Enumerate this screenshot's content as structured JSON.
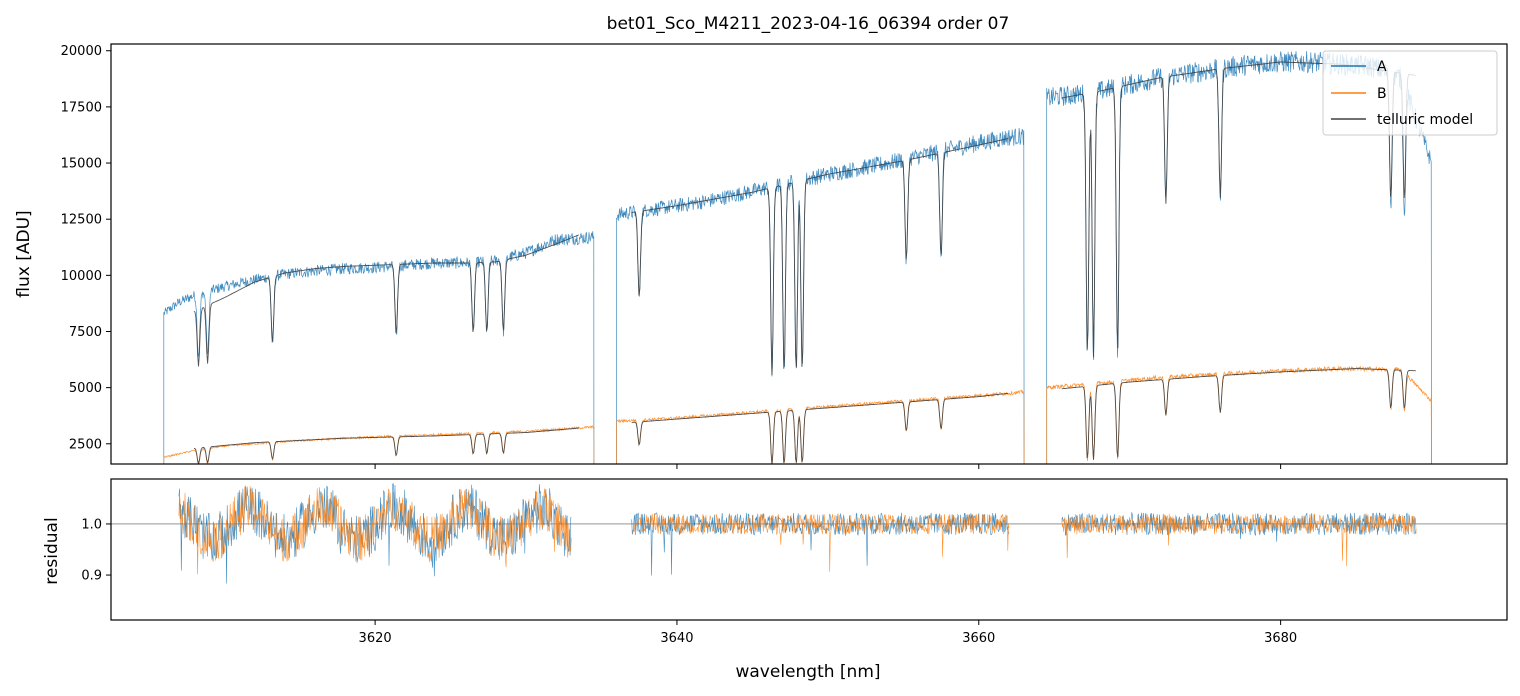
{
  "chart_data": {
    "type": "line",
    "title": "bet01_Sco_M4211_2023-04-16_06394  order 07",
    "xlabel": "wavelength [nm]",
    "xlim": [
      3602.5,
      3695
    ],
    "x_ticks": [
      "3620",
      "3640",
      "3660",
      "3680"
    ],
    "panels": [
      {
        "name": "flux",
        "ylabel": "flux [ADU]",
        "ylim": [
          1600,
          20300
        ],
        "y_ticks": [
          "2500",
          "5000",
          "7500",
          "10000",
          "12500",
          "15000",
          "17500",
          "20000"
        ],
        "legend_position": "upper right",
        "legend": [
          "A",
          "B",
          "telluric model"
        ],
        "series": [
          {
            "name": "A",
            "color": "#1f77b4",
            "segments": [
              {
                "x": [
                  3606,
                  3607,
                  3608,
                  3609,
                  3610,
                  3612,
                  3614,
                  3616,
                  3618,
                  3620,
                  3622,
                  3624,
                  3626,
                  3628,
                  3630,
                  3632,
                  3634.5
                ],
                "y": [
                  8300,
                  8800,
                  9100,
                  9300,
                  9500,
                  9800,
                  10050,
                  10200,
                  10300,
                  10350,
                  10450,
                  10550,
                  10550,
                  10650,
                  11000,
                  11600,
                  11700
                ]
              },
              {
                "x": [
                  3636,
                  3638,
                  3640,
                  3642,
                  3644,
                  3646,
                  3648,
                  3650,
                  3652,
                  3654,
                  3656,
                  3658,
                  3660,
                  3662,
                  3663
                ],
                "y": [
                  12700,
                  12900,
                  13100,
                  13300,
                  13600,
                  13900,
                  14200,
                  14500,
                  14750,
                  15000,
                  15300,
                  15600,
                  15900,
                  16150,
                  16200
                ]
              },
              {
                "x": [
                  3664.5,
                  3666,
                  3668,
                  3670,
                  3672,
                  3674,
                  3676,
                  3678,
                  3680,
                  3682,
                  3684,
                  3686,
                  3688,
                  3690
                ],
                "y": [
                  17900,
                  18000,
                  18200,
                  18500,
                  18800,
                  19000,
                  19200,
                  19400,
                  19500,
                  19500,
                  19400,
                  19300,
                  18800,
                  15000
                ]
              }
            ]
          },
          {
            "name": "B",
            "color": "#ff7f0e",
            "segments": [
              {
                "x": [
                  3606,
                  3608,
                  3610,
                  3614,
                  3618,
                  3622,
                  3626,
                  3630,
                  3634.5
                ],
                "y": [
                  1900,
                  2200,
                  2400,
                  2600,
                  2750,
                  2850,
                  2950,
                  3050,
                  3250
                ]
              },
              {
                "x": [
                  3636,
                  3640,
                  3645,
                  3650,
                  3655,
                  3660,
                  3663
                ],
                "y": [
                  3500,
                  3650,
                  3900,
                  4150,
                  4400,
                  4650,
                  4800
                ]
              },
              {
                "x": [
                  3664.5,
                  3668,
                  3672,
                  3676,
                  3680,
                  3684,
                  3688,
                  3690
                ],
                "y": [
                  5000,
                  5200,
                  5450,
                  5600,
                  5750,
                  5850,
                  5800,
                  4400
                ]
              }
            ]
          },
          {
            "name": "telluric model",
            "color": "#404040",
            "segments": [
              {
                "x": [
                  3608,
                  3610,
                  3612,
                  3614,
                  3616,
                  3618,
                  3620,
                  3622,
                  3624,
                  3626,
                  3628,
                  3630,
                  3632,
                  3633.5
                ],
                "y": [
                  8400,
                  9000,
                  9700,
                  10100,
                  10300,
                  10400,
                  10450,
                  10500,
                  10550,
                  10550,
                  10600,
                  10900,
                  11400,
                  11800
                ]
              },
              {
                "x": [
                  3637,
                  3640,
                  3645,
                  3650,
                  3655,
                  3660,
                  3662
                ],
                "y": [
                  12800,
                  13100,
                  13700,
                  14500,
                  15100,
                  15800,
                  16100
                ]
              },
              {
                "x": [
                  3665.5,
                  3668,
                  3672,
                  3676,
                  3680,
                  3684,
                  3688,
                  3689
                ],
                "y": [
                  17900,
                  18200,
                  18800,
                  19200,
                  19500,
                  19400,
                  19000,
                  18900
                ]
              },
              {
                "x": [
                  3608,
                  3612,
                  3618,
                  3624,
                  3630,
                  3633.5
                ],
                "y": [
                  2300,
                  2550,
                  2750,
                  2850,
                  3000,
                  3200
                ]
              },
              {
                "x": [
                  3637,
                  3642,
                  3648,
                  3654,
                  3660,
                  3662
                ],
                "y": [
                  3450,
                  3700,
                  4000,
                  4300,
                  4600,
                  4750
                ]
              },
              {
                "x": [
                  3665.5,
                  3670,
                  3675,
                  3680,
                  3685,
                  3689
                ],
                "y": [
                  4950,
                  5250,
                  5500,
                  5700,
                  5850,
                  5750
                ]
              }
            ]
          }
        ]
      },
      {
        "name": "residual",
        "ylabel": "residual",
        "ylim": [
          0.812,
          1.088
        ],
        "y_ticks": [
          "0.9",
          "1.0"
        ],
        "reference_line": 1.0,
        "series": [
          {
            "name": "A",
            "color": "#1f77b4",
            "segments": [
              {
                "x_range": [
                  3607,
                  3633
                ],
                "center": 1.0
              },
              {
                "x_range": [
                  3637,
                  3662
                ],
                "center": 1.0
              },
              {
                "x_range": [
                  3665.5,
                  3689
                ],
                "center": 1.0
              }
            ]
          },
          {
            "name": "B",
            "color": "#ff7f0e",
            "segments": [
              {
                "x_range": [
                  3607,
                  3633
                ],
                "center": 1.0
              },
              {
                "x_range": [
                  3637,
                  3662
                ],
                "center": 1.0
              },
              {
                "x_range": [
                  3665.5,
                  3689
                ],
                "center": 1.0
              }
            ]
          }
        ]
      }
    ]
  }
}
